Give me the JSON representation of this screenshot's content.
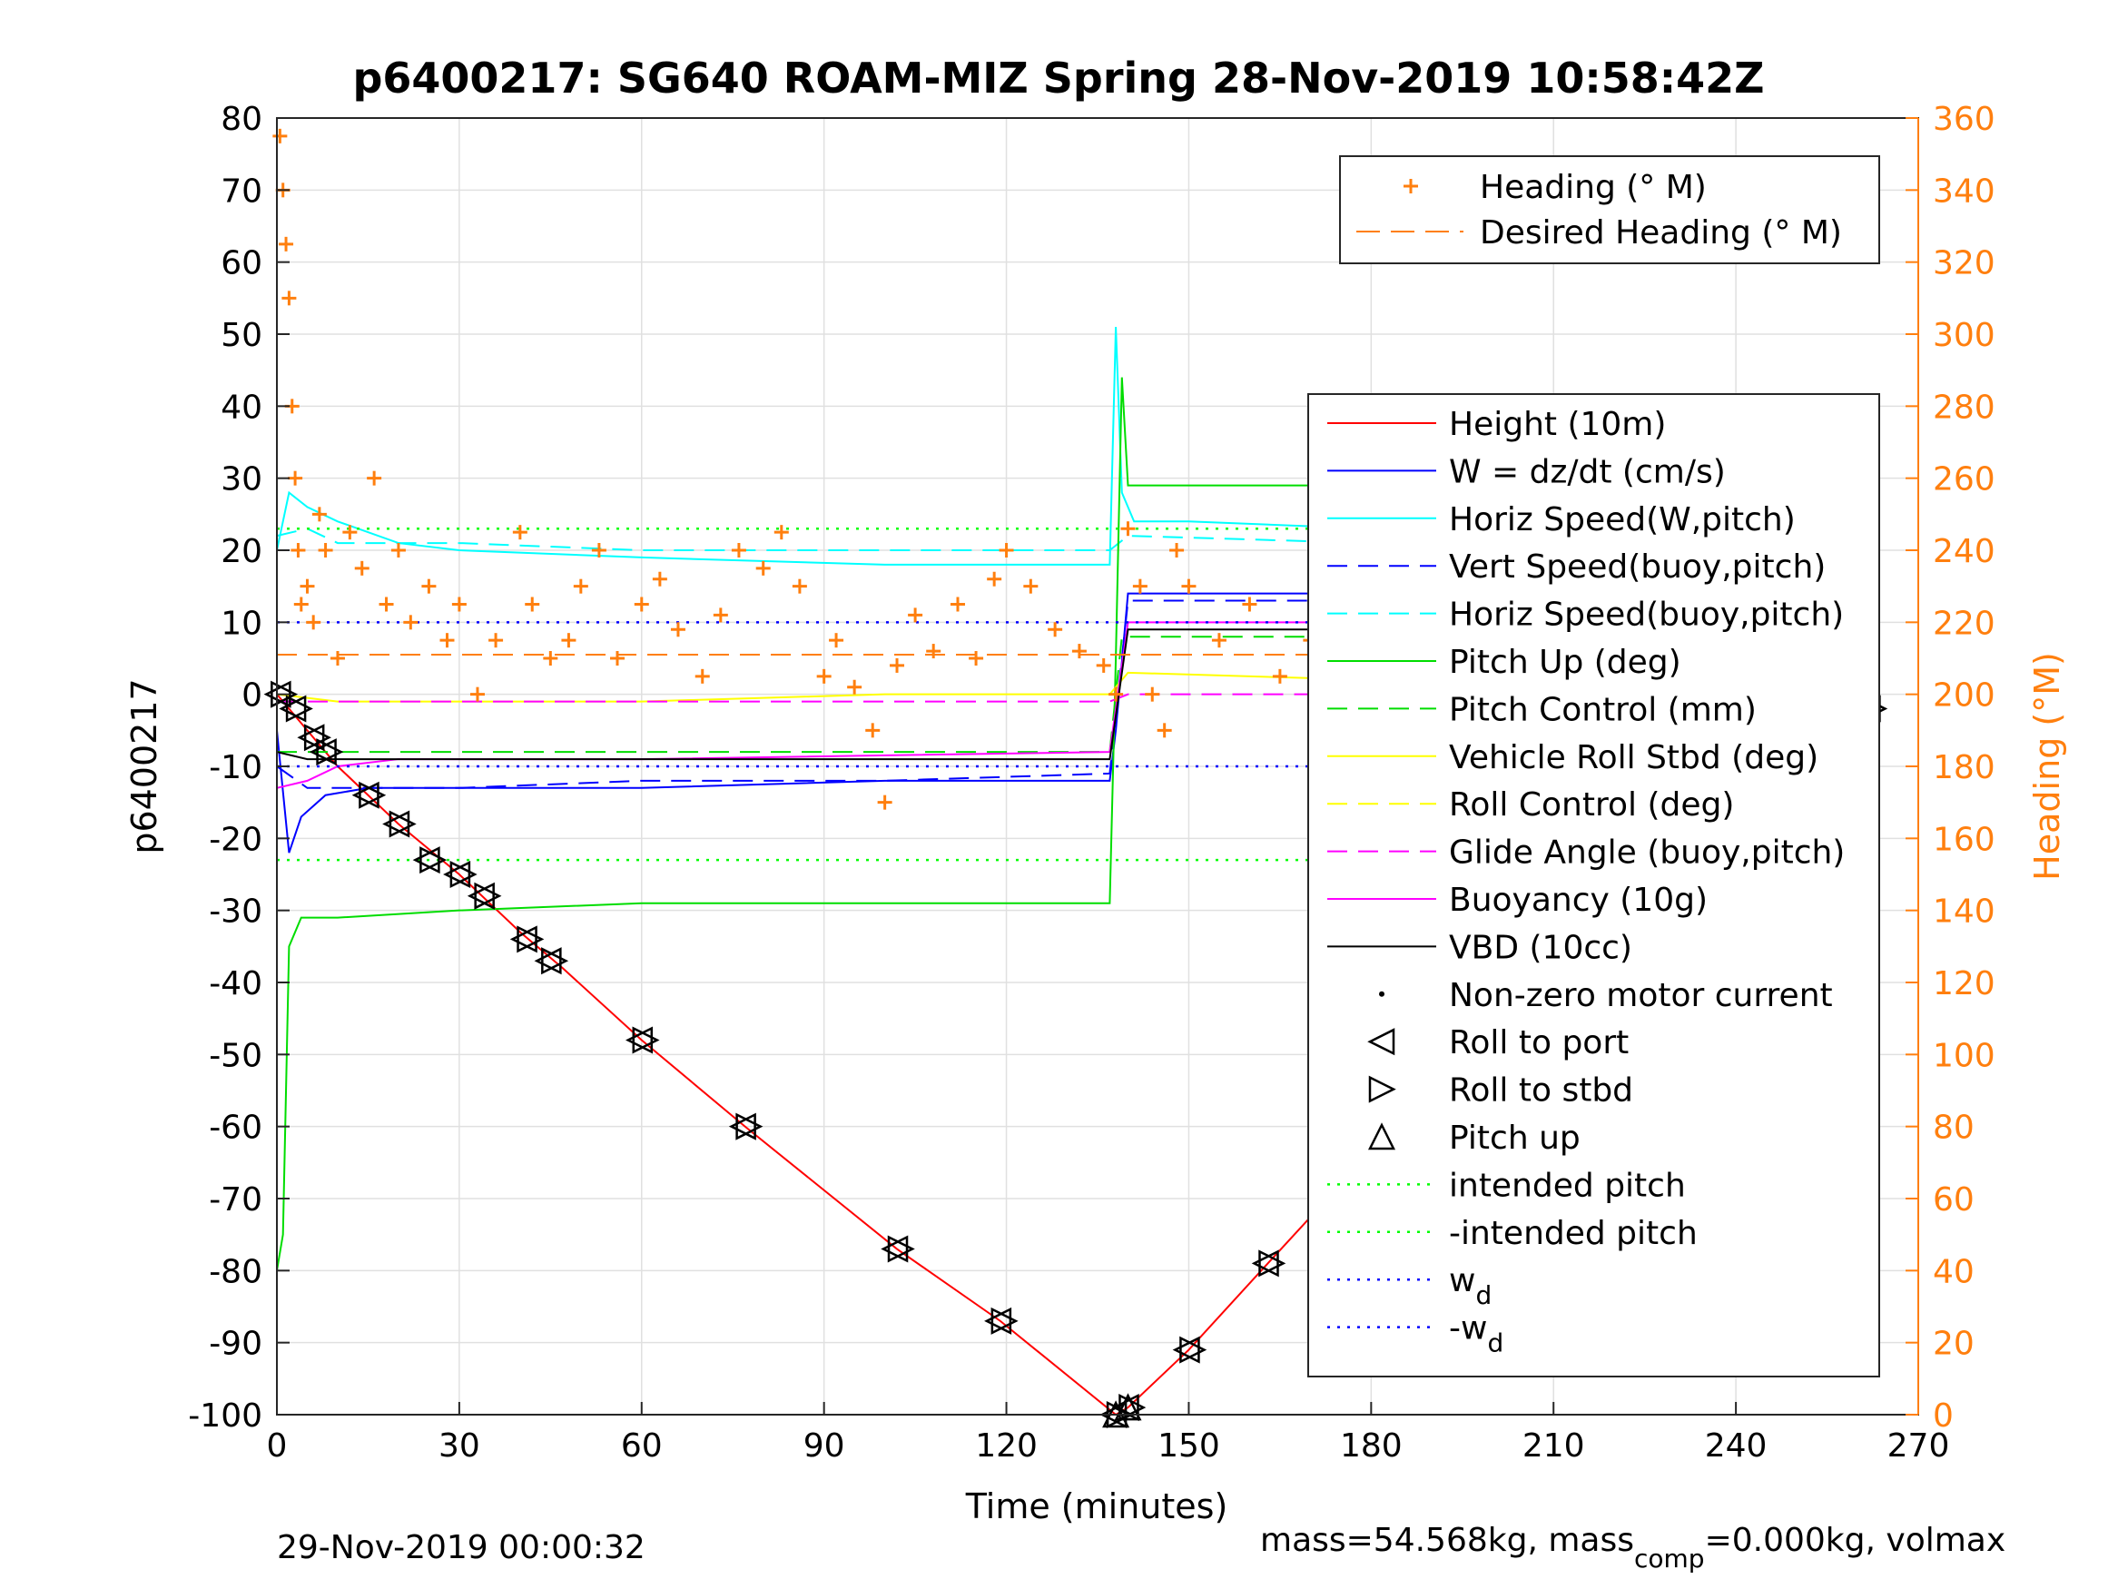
{
  "chart_data": {
    "type": "line",
    "title": "p6400217: SG640 ROAM-MIZ Spring 28-Nov-2019 10:58:42Z",
    "xlabel": "Time (minutes)",
    "ylabel": "p6400217",
    "ylabel_right": "Heading (°M)",
    "xlim": [
      0,
      270
    ],
    "ylim": [
      -100,
      80
    ],
    "ylim_right": [
      0,
      360
    ],
    "x_ticks": [
      0,
      30,
      60,
      90,
      120,
      150,
      180,
      210,
      240,
      270
    ],
    "y_ticks": [
      -100,
      -90,
      -80,
      -70,
      -60,
      -50,
      -40,
      -30,
      -20,
      -10,
      0,
      10,
      20,
      30,
      40,
      50,
      60,
      70,
      80
    ],
    "y_ticks_right": [
      0,
      20,
      40,
      60,
      80,
      100,
      120,
      140,
      160,
      180,
      200,
      220,
      240,
      260,
      280,
      300,
      320,
      340,
      360
    ],
    "grid": true,
    "legend_heading": [
      {
        "label": "Heading (° M)",
        "color": "#ff7f0e",
        "style": "plus"
      },
      {
        "label": "Desired Heading (° M)",
        "color": "#ff7f0e",
        "style": "dash"
      }
    ],
    "legend_main": [
      {
        "label": "Height (10m)",
        "color": "#ff0000",
        "style": "solid"
      },
      {
        "label": "W = dz/dt (cm/s)",
        "color": "#0000ff",
        "style": "solid"
      },
      {
        "label": "Horiz Speed(W,pitch)",
        "color": "#00ffff",
        "style": "solid"
      },
      {
        "label": "Vert Speed(buoy,pitch)",
        "color": "#0000ff",
        "style": "dash"
      },
      {
        "label": "Horiz Speed(buoy,pitch)",
        "color": "#00ffff",
        "style": "dash"
      },
      {
        "label": "Pitch Up (deg)",
        "color": "#00dd00",
        "style": "solid"
      },
      {
        "label": "Pitch Control (mm)",
        "color": "#00dd00",
        "style": "dash"
      },
      {
        "label": "Vehicle Roll Stbd (deg)",
        "color": "#ffff00",
        "style": "solid"
      },
      {
        "label": "Roll Control (deg)",
        "color": "#ffff00",
        "style": "dash"
      },
      {
        "label": "Glide Angle (buoy,pitch)",
        "color": "#ff00ff",
        "style": "dash"
      },
      {
        "label": "Buoyancy (10g)",
        "color": "#ff00ff",
        "style": "solid"
      },
      {
        "label": "VBD (10cc)",
        "color": "#000000",
        "style": "solid"
      },
      {
        "label": "Non-zero motor current",
        "color": "#000000",
        "style": "dot"
      },
      {
        "label": "Roll to port",
        "color": "#000000",
        "style": "tri-left"
      },
      {
        "label": "Roll to stbd",
        "color": "#000000",
        "style": "tri-right"
      },
      {
        "label": "Pitch up",
        "color": "#000000",
        "style": "tri-up"
      },
      {
        "label": "intended pitch",
        "color": "#00ff00",
        "style": "dotted"
      },
      {
        "label": "-intended pitch",
        "color": "#00ff00",
        "style": "dotted"
      },
      {
        "label": "w",
        "sub": "d",
        "color": "#0000ff",
        "style": "dotted"
      },
      {
        "label": "-w",
        "sub": "d",
        "color": "#0000ff",
        "style": "dotted"
      }
    ],
    "series": [
      {
        "name": "Height (10m)",
        "color": "#ff0000",
        "x": [
          0,
          5,
          10,
          20,
          30,
          40,
          47,
          60,
          77,
          102,
          119,
          138,
          140,
          150,
          163,
          175,
          185,
          195,
          210,
          218,
          232,
          240,
          250,
          262
        ],
        "y": [
          0,
          -5,
          -10,
          -18,
          -25,
          -33,
          -38,
          -48,
          -60,
          -77,
          -87,
          -100,
          -99,
          -91,
          -79,
          -68,
          -61,
          -54,
          -39,
          -33,
          -22,
          -17,
          -10,
          -2
        ]
      },
      {
        "name": "W = dz/dt (cm/s)",
        "color": "#0000ff",
        "x": [
          0,
          2,
          4,
          8,
          15,
          30,
          60,
          100,
          137,
          138,
          140,
          150,
          180,
          210,
          240,
          262
        ],
        "y": [
          -5,
          -22,
          -17,
          -14,
          -13,
          -13,
          -13,
          -12,
          -12,
          -5,
          14,
          14,
          14,
          14,
          13,
          11
        ]
      },
      {
        "name": "Horiz Speed(W,pitch)",
        "color": "#00ffff",
        "x": [
          0,
          2,
          5,
          10,
          20,
          30,
          60,
          100,
          137,
          138,
          139,
          141,
          150,
          180,
          210,
          240,
          262
        ],
        "y": [
          20,
          28,
          26,
          24,
          21,
          20,
          19,
          18,
          18,
          51,
          28,
          24,
          24,
          23,
          22,
          22,
          18
        ]
      },
      {
        "name": "Vert Speed(buoy,pitch)",
        "color": "#0000ff",
        "x": [
          0,
          5,
          10,
          30,
          60,
          100,
          137,
          140,
          180,
          262
        ],
        "y": [
          -10,
          -13,
          -13,
          -13,
          -12,
          -12,
          -11,
          13,
          13,
          12
        ]
      },
      {
        "name": "Horiz Speed(buoy,pitch)",
        "color": "#00ffff",
        "x": [
          0,
          5,
          10,
          30,
          60,
          100,
          137,
          140,
          180,
          262
        ],
        "y": [
          22,
          23,
          21,
          21,
          20,
          20,
          20,
          22,
          21,
          20
        ]
      },
      {
        "name": "Pitch Up (deg)",
        "color": "#00dd00",
        "x": [
          0,
          1,
          2,
          4,
          10,
          30,
          60,
          100,
          137,
          138,
          139,
          140,
          150,
          180,
          210,
          240,
          262
        ],
        "y": [
          -80,
          -75,
          -35,
          -31,
          -31,
          -30,
          -29,
          -29,
          -29,
          5,
          44,
          29,
          29,
          29,
          28,
          27,
          27
        ]
      },
      {
        "name": "Pitch Control (mm)",
        "color": "#00dd00",
        "x": [
          0,
          10,
          137,
          139,
          262
        ],
        "y": [
          -8,
          -8,
          -8,
          8,
          8
        ]
      },
      {
        "name": "Vehicle Roll Stbd (deg)",
        "color": "#ffff00",
        "x": [
          0,
          10,
          30,
          60,
          100,
          137,
          140,
          180,
          220,
          262
        ],
        "y": [
          0,
          -1,
          -1,
          -1,
          0,
          0,
          3,
          2,
          1,
          2
        ]
      },
      {
        "name": "Glide Angle (buoy,pitch)",
        "color": "#ff00ff",
        "x": [
          0,
          137,
          140,
          262
        ],
        "y": [
          -1,
          -1,
          0,
          0
        ]
      },
      {
        "name": "Buoyancy (10g)",
        "color": "#ff00ff",
        "x": [
          0,
          5,
          10,
          20,
          60,
          137,
          140,
          180,
          262
        ],
        "y": [
          -13,
          -12,
          -10,
          -9,
          -9,
          -8,
          10,
          10,
          10
        ]
      },
      {
        "name": "VBD (10cc)",
        "color": "#000000",
        "x": [
          0,
          5,
          10,
          60,
          137,
          140,
          180,
          262
        ],
        "y": [
          -8,
          -9,
          -9,
          -9,
          -9,
          9,
          9,
          9
        ]
      },
      {
        "name": "intended pitch",
        "color": "#00ff00",
        "x": [
          0,
          262
        ],
        "y": [
          23,
          23
        ]
      },
      {
        "name": "-intended pitch",
        "color": "#00ff00",
        "x": [
          0,
          262
        ],
        "y": [
          -23,
          -23
        ]
      },
      {
        "name": "wd",
        "color": "#0000ff",
        "x": [
          0,
          262
        ],
        "y": [
          10,
          10
        ]
      },
      {
        "name": "-wd",
        "color": "#0000ff",
        "x": [
          0,
          262
        ],
        "y": [
          -10,
          -10
        ]
      }
    ],
    "desired_heading": {
      "name": "Desired Heading (° M)",
      "color": "#ff7f0e",
      "x": [
        0,
        262
      ],
      "y": [
        211,
        211
      ]
    },
    "heading_points": {
      "name": "Heading (° M)",
      "color": "#ff7f0e",
      "x": [
        0.5,
        1,
        1.5,
        2,
        2.5,
        3,
        3.5,
        4,
        5,
        6,
        7,
        8,
        10,
        12,
        14,
        16,
        18,
        20,
        22,
        25,
        28,
        30,
        33,
        36,
        40,
        42,
        45,
        48,
        50,
        53,
        56,
        60,
        63,
        66,
        70,
        73,
        76,
        80,
        83,
        86,
        90,
        92,
        95,
        98,
        100,
        102,
        105,
        108,
        112,
        115,
        118,
        120,
        124,
        128,
        132,
        136,
        138,
        140,
        142,
        144,
        146,
        148,
        150,
        155,
        160,
        165,
        170,
        175,
        180,
        185,
        190,
        195,
        200,
        205,
        210,
        215,
        220,
        225,
        230,
        235,
        240,
        245,
        250,
        255,
        258,
        260,
        262
      ],
      "y": [
        355,
        340,
        325,
        310,
        280,
        260,
        240,
        225,
        230,
        220,
        250,
        240,
        210,
        245,
        235,
        260,
        225,
        240,
        220,
        230,
        215,
        225,
        200,
        215,
        245,
        225,
        210,
        215,
        230,
        240,
        210,
        225,
        232,
        218,
        205,
        222,
        240,
        235,
        245,
        230,
        205,
        215,
        202,
        190,
        170,
        208,
        222,
        212,
        225,
        210,
        232,
        240,
        230,
        218,
        212,
        208,
        200,
        246,
        230,
        200,
        190,
        240,
        230,
        215,
        225,
        205,
        215,
        200,
        215,
        230,
        210,
        222,
        230,
        210,
        215,
        200,
        225,
        210,
        220,
        215,
        205,
        225,
        215,
        210,
        230,
        195,
        200
      ]
    },
    "markers": {
      "roll_to_port": {
        "x": [
          0.5,
          3,
          6,
          8,
          15,
          20,
          25,
          30,
          34,
          41,
          45,
          60,
          77,
          102,
          119,
          138,
          140,
          150,
          163,
          175,
          185,
          190,
          193,
          197,
          210,
          218,
          232,
          236,
          240,
          244,
          248,
          252,
          256,
          259,
          262
        ],
        "y": [
          0,
          -2,
          -6,
          -8,
          -14,
          -18,
          -23,
          -25,
          -28,
          -34,
          -37,
          -48,
          -60,
          -77,
          -87,
          -100,
          -99,
          -91,
          -79,
          -68,
          -61,
          -58,
          -55,
          -51,
          -39,
          -33,
          -22,
          -19,
          -17,
          -13,
          -10,
          -7,
          -5,
          -3,
          -2
        ]
      },
      "pitch_up": {
        "x": [
          138,
          140
        ],
        "y": [
          -100,
          -99
        ]
      }
    },
    "footer_left": "29-Nov-2019 00:00:32",
    "footer_right": "mass=54.568kg, mass",
    "footer_right_sub": "comp",
    "footer_right_tail": "=0.000kg, volmax"
  }
}
